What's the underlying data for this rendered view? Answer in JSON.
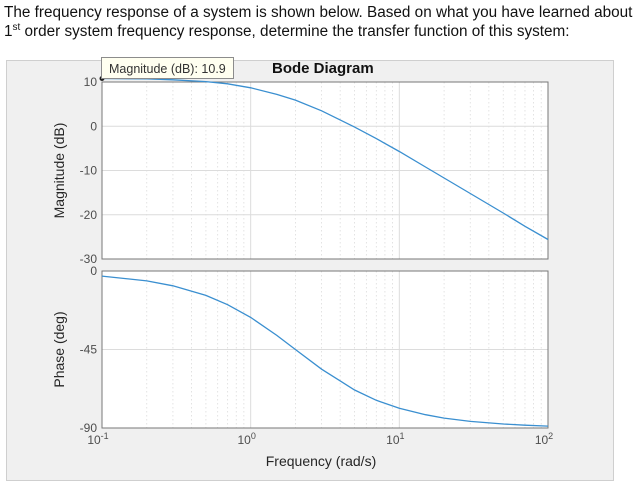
{
  "question": {
    "line1": "The frequency response of a system is shown below.  Based on what you have learned about",
    "line2_ordinal": "1",
    "line2_sup": "st",
    "line2_rest": " order system frequency response, determine the transfer function of this system:"
  },
  "datatip": {
    "label": "Magnitude (dB):",
    "value": "10.9"
  },
  "colors": {
    "line": "#3a8fd0",
    "axes_bg": "#ffffff",
    "figure_bg": "#f0f0f0",
    "grid": "#dcdcdc",
    "axis": "#777777"
  },
  "chart_data": [
    {
      "type": "line",
      "title": "Bode Diagram",
      "xlabel": "Frequency  (rad/s)",
      "ylabel": "Magnitude (dB)",
      "xscale": "log",
      "xlim": [
        0.1,
        100
      ],
      "ylim": [
        -30,
        10
      ],
      "yticks": [
        10,
        0,
        -10,
        -20,
        -30
      ],
      "grid": true,
      "series": [
        {
          "x": [
            0.1,
            0.2,
            0.3,
            0.5,
            0.7,
            1,
            1.5,
            2,
            3,
            5,
            7,
            10,
            15,
            20,
            30,
            50,
            70,
            100
          ],
          "y": [
            10.8,
            10.7,
            10.5,
            10.1,
            9.6,
            8.7,
            7.2,
            5.9,
            3.5,
            -0.2,
            -2.8,
            -5.7,
            -9.2,
            -11.7,
            -15.2,
            -19.6,
            -22.6,
            -25.6
          ]
        }
      ]
    },
    {
      "type": "line",
      "xlabel": "Frequency  (rad/s)",
      "ylabel": "Phase (deg)",
      "xscale": "log",
      "xlim": [
        0.1,
        100
      ],
      "ylim": [
        -90,
        0
      ],
      "yticks": [
        0,
        -45,
        -90
      ],
      "xticks": [
        {
          "base": "10",
          "exp": "-1"
        },
        {
          "base": "10",
          "exp": "0"
        },
        {
          "base": "10",
          "exp": "1"
        },
        {
          "base": "10",
          "exp": "2"
        }
      ],
      "grid": true,
      "series": [
        {
          "x": [
            0.1,
            0.2,
            0.3,
            0.5,
            0.7,
            1,
            1.5,
            2,
            3,
            5,
            7,
            10,
            15,
            20,
            30,
            50,
            70,
            100
          ],
          "y": [
            -2.9,
            -5.7,
            -8.5,
            -14,
            -19.3,
            -26.6,
            -36.9,
            -45,
            -56.3,
            -68.2,
            -74.1,
            -78.7,
            -82.4,
            -84.3,
            -86.2,
            -87.7,
            -88.4,
            -88.9
          ]
        }
      ]
    }
  ]
}
